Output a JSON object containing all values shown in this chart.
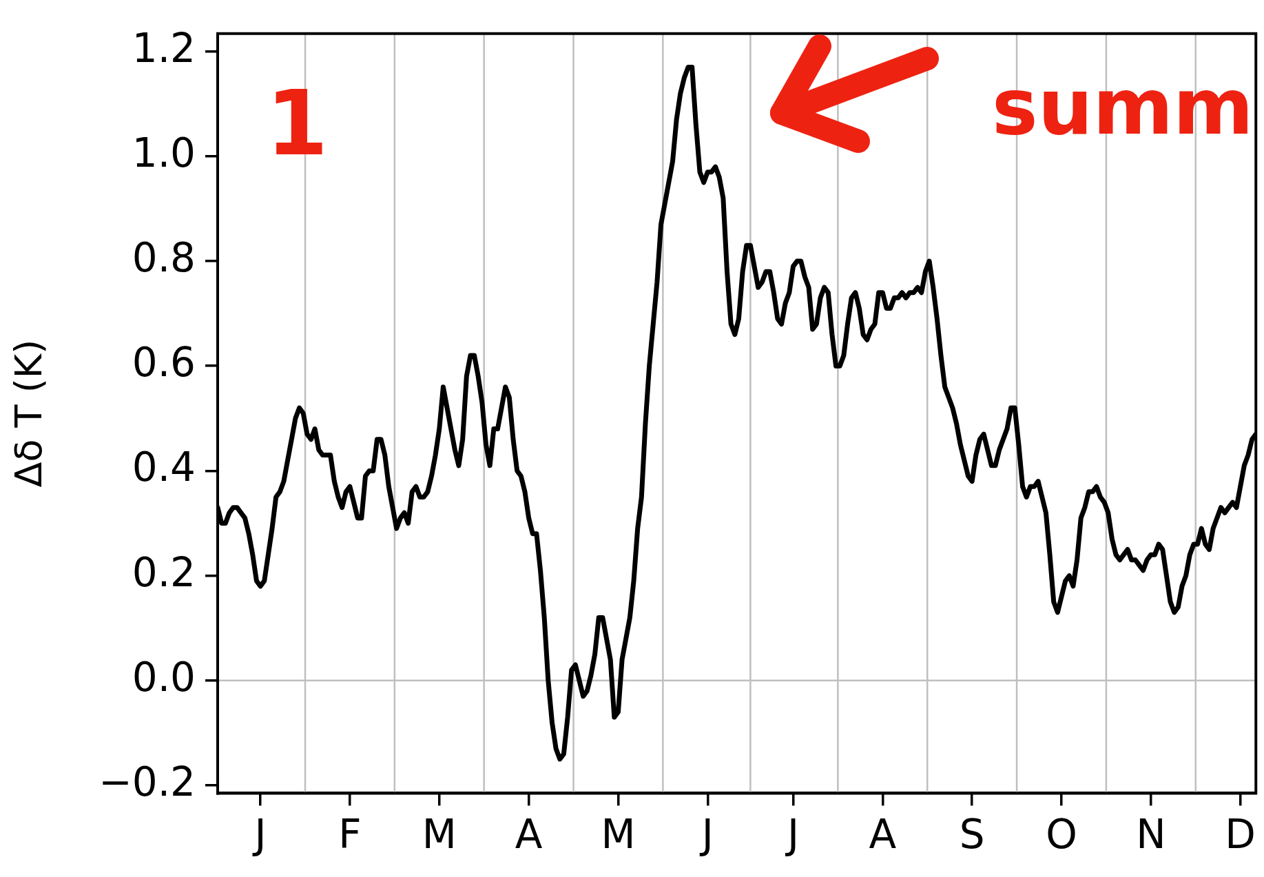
{
  "chart_data": {
    "type": "line",
    "ylabel": "Δδ T (K)",
    "annotations": [
      "1",
      "summ"
    ],
    "categories": [
      null,
      null,
      null,
      null,
      null,
      null,
      null,
      null,
      null,
      null,
      null,
      "J",
      null,
      null,
      null,
      null,
      null,
      null,
      null,
      null,
      null,
      null,
      null,
      null,
      null,
      null,
      null,
      null,
      null,
      null,
      null,
      null,
      null,
      null,
      "F",
      null,
      null,
      null,
      null,
      null,
      null,
      null,
      null,
      null,
      null,
      null,
      null,
      null,
      null,
      null,
      null,
      null,
      null,
      null,
      null,
      null,
      null,
      "M",
      null,
      null,
      null,
      null,
      null,
      null,
      null,
      null,
      null,
      null,
      null,
      null,
      null,
      null,
      null,
      null,
      null,
      null,
      null,
      null,
      null,
      null,
      "A",
      null,
      null,
      null,
      null,
      null,
      null,
      null,
      null,
      null,
      null,
      null,
      null,
      null,
      null,
      null,
      null,
      null,
      null,
      null,
      null,
      null,
      null,
      "M",
      null,
      null,
      null,
      null,
      null,
      null,
      null,
      null,
      null,
      null,
      null,
      null,
      null,
      null,
      null,
      null,
      null,
      null,
      null,
      null,
      null,
      null,
      "J",
      null,
      null,
      null,
      null,
      null,
      null,
      null,
      null,
      null,
      null,
      null,
      null,
      null,
      null,
      null,
      null,
      null,
      null,
      null,
      null,
      null,
      "J",
      null,
      null,
      null,
      null,
      null,
      null,
      null,
      null,
      null,
      null,
      null,
      null,
      null,
      null,
      null,
      null,
      null,
      null,
      null,
      null,
      null,
      null,
      "A",
      null,
      null,
      null,
      null,
      null,
      null,
      null,
      null,
      null,
      null,
      null,
      null,
      null,
      null,
      null,
      null,
      null,
      null,
      null,
      null,
      null,
      null,
      "S",
      null,
      null,
      null,
      null,
      null,
      null,
      null,
      null,
      null,
      null,
      null,
      null,
      null,
      null,
      null,
      null,
      null,
      null,
      null,
      null,
      null,
      null,
      "O",
      null,
      null,
      null,
      null,
      null,
      null,
      null,
      null,
      null,
      null,
      null,
      null,
      null,
      null,
      null,
      null,
      null,
      null,
      null,
      null,
      null,
      null,
      "N",
      null,
      null,
      null,
      null,
      null,
      null,
      null,
      null,
      null,
      null,
      null,
      null,
      null,
      null,
      null,
      null,
      null,
      null,
      null,
      null,
      null,
      null,
      "D",
      null,
      null,
      null,
      null
    ],
    "ylim": [
      -0.215,
      1.234
    ],
    "yticks": [
      {
        "value": -0.2,
        "label": "−0.2"
      },
      {
        "value": 0,
        "label": "0.0"
      },
      {
        "value": 0.2,
        "label": "0.2"
      },
      {
        "value": 0.4,
        "label": "0.4"
      },
      {
        "value": 0.6,
        "label": "0.6"
      },
      {
        "value": 0.8,
        "label": "0.8"
      },
      {
        "value": 1,
        "label": "1.0"
      },
      {
        "value": 1.2,
        "label": "1.2"
      }
    ],
    "grid": "x",
    "legend": false,
    "marker": "none",
    "line_style": "solid",
    "ref_lines": [
      {
        "axis": "y",
        "value": 0,
        "color": "#bfbfbf"
      }
    ],
    "series": [
      {
        "color": "#000000",
        "values": [
          0.33,
          0.3,
          0.3,
          0.32,
          0.33,
          0.33,
          0.32,
          0.31,
          0.28,
          0.24,
          0.19,
          0.18,
          0.19,
          0.24,
          0.29,
          0.35,
          0.36,
          0.38,
          0.42,
          0.46,
          0.5,
          0.52,
          0.51,
          0.47,
          0.46,
          0.48,
          0.44,
          0.43,
          0.43,
          0.43,
          0.38,
          0.35,
          0.33,
          0.36,
          0.37,
          0.34,
          0.31,
          0.31,
          0.39,
          0.4,
          0.4,
          0.46,
          0.46,
          0.43,
          0.37,
          0.33,
          0.29,
          0.31,
          0.32,
          0.3,
          0.36,
          0.37,
          0.35,
          0.35,
          0.36,
          0.39,
          0.43,
          0.48,
          0.56,
          0.52,
          0.48,
          0.44,
          0.41,
          0.46,
          0.58,
          0.62,
          0.62,
          0.58,
          0.53,
          0.45,
          0.41,
          0.48,
          0.48,
          0.52,
          0.56,
          0.54,
          0.46,
          0.4,
          0.39,
          0.36,
          0.31,
          0.28,
          0.28,
          0.21,
          0.12,
          0,
          -0.08,
          -0.13,
          -0.15,
          -0.14,
          -0.07,
          0.02,
          0.03,
          0,
          -0.03,
          -0.02,
          0.01,
          0.05,
          0.12,
          0.12,
          0.08,
          0.04,
          -0.07,
          -0.06,
          0.04,
          0.08,
          0.12,
          0.19,
          0.29,
          0.35,
          0.49,
          0.6,
          0.68,
          0.76,
          0.87,
          0.91,
          0.95,
          0.99,
          1.07,
          1.12,
          1.15,
          1.17,
          1.17,
          1.06,
          0.97,
          0.95,
          0.97,
          0.97,
          0.98,
          0.96,
          0.92,
          0.78,
          0.68,
          0.66,
          0.69,
          0.78,
          0.83,
          0.83,
          0.79,
          0.75,
          0.76,
          0.78,
          0.78,
          0.74,
          0.69,
          0.68,
          0.72,
          0.74,
          0.79,
          0.8,
          0.8,
          0.77,
          0.75,
          0.67,
          0.68,
          0.73,
          0.75,
          0.74,
          0.66,
          0.6,
          0.6,
          0.62,
          0.68,
          0.73,
          0.74,
          0.71,
          0.66,
          0.65,
          0.67,
          0.68,
          0.74,
          0.74,
          0.71,
          0.71,
          0.73,
          0.73,
          0.74,
          0.73,
          0.74,
          0.74,
          0.75,
          0.74,
          0.78,
          0.8,
          0.75,
          0.69,
          0.62,
          0.56,
          0.54,
          0.52,
          0.49,
          0.45,
          0.42,
          0.39,
          0.38,
          0.43,
          0.46,
          0.47,
          0.44,
          0.41,
          0.41,
          0.44,
          0.46,
          0.48,
          0.52,
          0.52,
          0.45,
          0.37,
          0.35,
          0.37,
          0.37,
          0.38,
          0.35,
          0.32,
          0.24,
          0.15,
          0.13,
          0.16,
          0.19,
          0.2,
          0.18,
          0.23,
          0.31,
          0.33,
          0.36,
          0.36,
          0.37,
          0.35,
          0.34,
          0.32,
          0.27,
          0.24,
          0.23,
          0.24,
          0.25,
          0.23,
          0.23,
          0.22,
          0.21,
          0.23,
          0.24,
          0.24,
          0.26,
          0.25,
          0.2,
          0.15,
          0.13,
          0.14,
          0.18,
          0.2,
          0.24,
          0.26,
          0.26,
          0.29,
          0.26,
          0.25,
          0.29,
          0.31,
          0.33,
          0.32,
          0.33,
          0.34,
          0.33,
          0.37,
          0.41,
          0.43,
          0.46,
          0.47
        ]
      }
    ]
  }
}
